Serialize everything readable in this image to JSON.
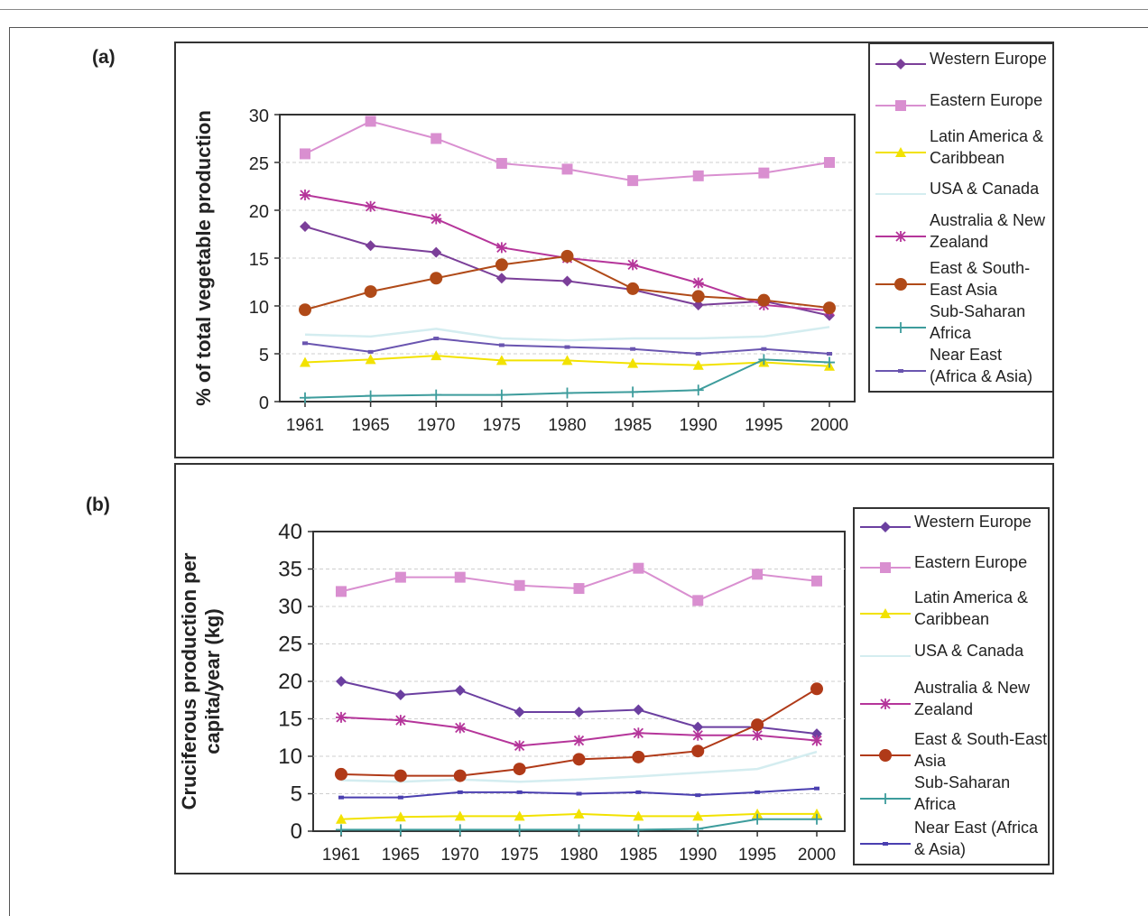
{
  "chart_data": [
    {
      "panel": "(a)",
      "type": "line",
      "title": "",
      "xlabel": "",
      "ylabel": "% of total vegetable production",
      "categories": [
        "1961",
        "1965",
        "1970",
        "1975",
        "1980",
        "1985",
        "1990",
        "1995",
        "2000"
      ],
      "ylim": [
        0,
        30
      ],
      "yticks": [
        "0",
        "5",
        "10",
        "15",
        "20",
        "25",
        "30"
      ],
      "grid": true,
      "legend_position": "right",
      "series": [
        {
          "name": "Western Europe",
          "color": "#7b3f99",
          "marker": "diamond",
          "values": [
            18.3,
            16.3,
            15.6,
            12.9,
            12.6,
            11.7,
            10.1,
            10.5,
            9.0
          ]
        },
        {
          "name": "Eastern Europe",
          "color": "#d98fd0",
          "marker": "square",
          "values": [
            25.9,
            29.3,
            27.5,
            24.9,
            24.3,
            23.1,
            23.6,
            23.9,
            25.0
          ]
        },
        {
          "name": "Latin America & Caribbean",
          "color": "#f2e200",
          "marker": "triangle",
          "values": [
            4.1,
            4.4,
            4.8,
            4.3,
            4.3,
            4.0,
            3.8,
            4.1,
            3.7
          ]
        },
        {
          "name": "USA & Canada",
          "color": "#d4edf0",
          "marker": "none",
          "values": [
            7.0,
            6.8,
            7.6,
            6.6,
            6.4,
            6.6,
            6.6,
            6.8,
            7.8
          ]
        },
        {
          "name": "Australia & New Zealand",
          "color": "#b5359a",
          "marker": "star",
          "values": [
            21.6,
            20.4,
            19.1,
            16.1,
            15.0,
            14.3,
            12.4,
            10.1,
            9.5
          ]
        },
        {
          "name": "East & South-East Asia",
          "color": "#b04a18",
          "marker": "circle",
          "values": [
            9.6,
            11.5,
            12.9,
            14.3,
            15.2,
            11.8,
            11.0,
            10.6,
            9.8
          ]
        },
        {
          "name": "Sub-Saharan Africa",
          "color": "#3d9c9c",
          "marker": "plus",
          "values": [
            0.4,
            0.6,
            0.7,
            0.7,
            0.9,
            1.0,
            1.2,
            4.4,
            4.1
          ]
        },
        {
          "name": "Near East (Africa & Asia)",
          "color": "#6a55b0",
          "marker": "dash",
          "values": [
            6.1,
            5.2,
            6.6,
            5.9,
            5.7,
            5.5,
            5.0,
            5.5,
            5.0
          ]
        }
      ]
    },
    {
      "panel": "(b)",
      "type": "line",
      "title": "",
      "xlabel": "",
      "ylabel": "Cruciferous production per capita/year (kg)",
      "categories": [
        "1961",
        "1965",
        "1970",
        "1975",
        "1980",
        "1985",
        "1990",
        "1995",
        "2000"
      ],
      "ylim": [
        0,
        40
      ],
      "yticks": [
        "0",
        "5",
        "10",
        "15",
        "20",
        "25",
        "30",
        "35",
        "40"
      ],
      "grid": true,
      "legend_position": "right",
      "series": [
        {
          "name": "Western Europe",
          "color": "#6b3fa0",
          "marker": "diamond",
          "values": [
            20.0,
            18.2,
            18.8,
            15.9,
            15.9,
            16.2,
            13.9,
            13.9,
            13.0
          ]
        },
        {
          "name": "Eastern Europe",
          "color": "#d98fd0",
          "marker": "square",
          "values": [
            32.0,
            33.9,
            33.9,
            32.8,
            32.4,
            35.1,
            30.8,
            34.3,
            33.4
          ]
        },
        {
          "name": "Latin America & Caribbean",
          "color": "#f2e200",
          "marker": "triangle",
          "values": [
            1.6,
            1.9,
            2.0,
            2.0,
            2.3,
            2.0,
            2.0,
            2.3,
            2.3
          ]
        },
        {
          "name": "USA & Canada",
          "color": "#d4edf0",
          "marker": "none",
          "values": [
            6.8,
            6.6,
            6.9,
            6.6,
            6.9,
            7.3,
            7.8,
            8.3,
            10.6
          ]
        },
        {
          "name": "Australia & New Zealand",
          "color": "#b5359a",
          "marker": "star",
          "values": [
            15.2,
            14.8,
            13.8,
            11.4,
            12.1,
            13.1,
            12.8,
            12.8,
            12.1
          ]
        },
        {
          "name": "East & South-East Asia",
          "color": "#b03a18",
          "marker": "circle",
          "values": [
            7.6,
            7.4,
            7.4,
            8.3,
            9.6,
            9.9,
            10.7,
            14.2,
            19.0
          ]
        },
        {
          "name": "Sub-Saharan Africa",
          "color": "#3d9c9c",
          "marker": "plus",
          "values": [
            0.2,
            0.2,
            0.2,
            0.2,
            0.2,
            0.2,
            0.3,
            1.6,
            1.6
          ]
        },
        {
          "name": "Near East (Africa & Asia)",
          "color": "#4a3fb0",
          "marker": "dash",
          "values": [
            4.5,
            4.5,
            5.2,
            5.2,
            5.0,
            5.2,
            4.8,
            5.2,
            5.7
          ]
        }
      ]
    }
  ],
  "legends": [
    {
      "items": [
        "Western Europe",
        "Eastern Europe",
        "Latin America & Caribbean",
        "USA & Canada",
        "Australia & New Zealand",
        "East & South-East Asia",
        "Sub-Saharan Africa",
        "Near East (Africa & Asia)"
      ]
    },
    {
      "items": [
        "Western Europe",
        "Eastern Europe",
        "Latin America & Caribbean",
        "USA & Canada",
        "Australia & New Zealand",
        "East & South-East Asia",
        "Sub-Saharan Africa",
        "Near East (Africa & Asia)"
      ]
    }
  ]
}
